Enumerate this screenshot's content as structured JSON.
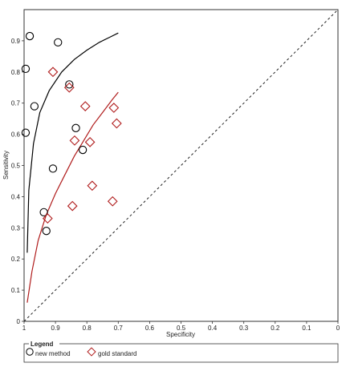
{
  "chart_data": {
    "type": "scatter",
    "title": "",
    "xlabel": "Specificity",
    "ylabel": "Sensitivity",
    "x_reversed": true,
    "xlim": [
      1,
      0
    ],
    "ylim": [
      0,
      1
    ],
    "x_ticks": [
      1,
      0.9,
      0.8,
      0.7,
      0.6,
      0.5,
      0.4,
      0.3,
      0.2,
      0.1,
      0
    ],
    "x_tick_labels": [
      "1",
      "0.9",
      "0.8",
      "0.7",
      "0.6",
      "0.5",
      "0.4",
      "0.3",
      "0.2",
      "0.1",
      "0"
    ],
    "y_ticks": [
      0,
      0.1,
      0.2,
      0.3,
      0.4,
      0.5,
      0.6,
      0.7,
      0.8,
      0.9
    ],
    "y_tick_labels": [
      "0",
      "0.1",
      "0.2",
      "0.3",
      "0.4",
      "0.5",
      "0.6",
      "0.7",
      "0.8",
      "0.9"
    ],
    "grid": false,
    "reference_line": "chance diagonal (dashed)",
    "legend_position": "bottom",
    "legend_title": "Legend",
    "series": [
      {
        "name": "new method",
        "marker": "circle",
        "color": "#000000",
        "points": [
          {
            "x": 0.982,
            "y": 0.915
          },
          {
            "x": 0.892,
            "y": 0.895
          },
          {
            "x": 0.995,
            "y": 0.81
          },
          {
            "x": 0.856,
            "y": 0.76
          },
          {
            "x": 0.967,
            "y": 0.69
          },
          {
            "x": 0.835,
            "y": 0.62
          },
          {
            "x": 0.995,
            "y": 0.605
          },
          {
            "x": 0.813,
            "y": 0.55
          },
          {
            "x": 0.908,
            "y": 0.49
          },
          {
            "x": 0.937,
            "y": 0.35
          },
          {
            "x": 0.929,
            "y": 0.29
          }
        ],
        "curve": [
          {
            "x": 0.99,
            "y": 0.22
          },
          {
            "x": 0.985,
            "y": 0.42
          },
          {
            "x": 0.97,
            "y": 0.57
          },
          {
            "x": 0.95,
            "y": 0.67
          },
          {
            "x": 0.92,
            "y": 0.74
          },
          {
            "x": 0.88,
            "y": 0.8
          },
          {
            "x": 0.84,
            "y": 0.84
          },
          {
            "x": 0.8,
            "y": 0.87
          },
          {
            "x": 0.76,
            "y": 0.895
          },
          {
            "x": 0.73,
            "y": 0.91
          },
          {
            "x": 0.7,
            "y": 0.925
          }
        ]
      },
      {
        "name": "gold standard",
        "marker": "diamond",
        "color": "#b01c1c",
        "points": [
          {
            "x": 0.908,
            "y": 0.8
          },
          {
            "x": 0.856,
            "y": 0.75
          },
          {
            "x": 0.805,
            "y": 0.69
          },
          {
            "x": 0.714,
            "y": 0.685
          },
          {
            "x": 0.705,
            "y": 0.635
          },
          {
            "x": 0.839,
            "y": 0.58
          },
          {
            "x": 0.79,
            "y": 0.575
          },
          {
            "x": 0.783,
            "y": 0.435
          },
          {
            "x": 0.718,
            "y": 0.385
          },
          {
            "x": 0.846,
            "y": 0.37
          },
          {
            "x": 0.925,
            "y": 0.33
          }
        ],
        "curve": [
          {
            "x": 0.99,
            "y": 0.06
          },
          {
            "x": 0.975,
            "y": 0.16
          },
          {
            "x": 0.955,
            "y": 0.26
          },
          {
            "x": 0.93,
            "y": 0.34
          },
          {
            "x": 0.9,
            "y": 0.41
          },
          {
            "x": 0.87,
            "y": 0.47
          },
          {
            "x": 0.84,
            "y": 0.53
          },
          {
            "x": 0.81,
            "y": 0.58
          },
          {
            "x": 0.78,
            "y": 0.63
          },
          {
            "x": 0.75,
            "y": 0.67
          },
          {
            "x": 0.72,
            "y": 0.71
          },
          {
            "x": 0.7,
            "y": 0.735
          }
        ]
      }
    ]
  }
}
